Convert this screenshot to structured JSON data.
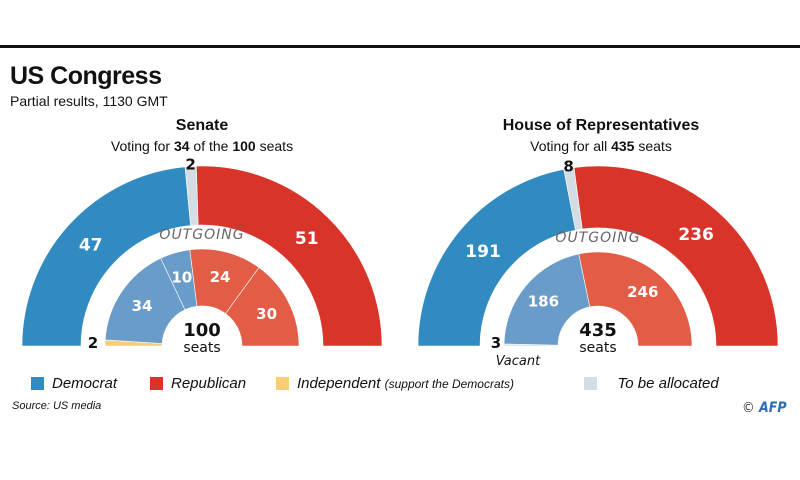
{
  "header": {
    "title": "US Congress",
    "subtitle": "Partial results, 1130 GMT"
  },
  "colors": {
    "democrat": "#318bc0",
    "republican": "#d9342a",
    "independent": "#f7cd78",
    "to_be_allocated": "#d4dde4",
    "democrat_outgoing": "#6a9cc9",
    "republican_outgoing": "#e25c46",
    "outgoing_label": "#666666"
  },
  "chart_data": [
    {
      "type": "semicircle-parliament",
      "title": "Senate",
      "subtitle_parts": [
        "Voting for ",
        "34",
        " of the ",
        "100",
        " seats"
      ],
      "total": 100,
      "total_label": "seats",
      "outer_ring": [
        {
          "party": "Democrat",
          "value": 47,
          "color": "democrat"
        },
        {
          "party": "To be allocated",
          "value": 2,
          "color": "to_be_allocated"
        },
        {
          "party": "Republican",
          "value": 51,
          "color": "republican"
        }
      ],
      "inner_label": "OUTGOING",
      "inner_ring": [
        {
          "party": "Independent",
          "value": 2,
          "color": "independent"
        },
        {
          "party": "Democrat",
          "value": 34,
          "color": "democrat_outgoing"
        },
        {
          "party": "Democrat",
          "value": 10,
          "color": "democrat_outgoing"
        },
        {
          "party": "Republican",
          "value": 24,
          "color": "republican_outgoing"
        },
        {
          "party": "Republican",
          "value": 30,
          "color": "republican_outgoing"
        }
      ]
    },
    {
      "type": "semicircle-parliament",
      "title": "House of Representatives",
      "subtitle_parts": [
        "Voting for all ",
        "435",
        " seats"
      ],
      "total": 435,
      "total_label": "seats",
      "outer_ring": [
        {
          "party": "Democrat",
          "value": 191,
          "color": "democrat"
        },
        {
          "party": "To be allocated",
          "value": 8,
          "color": "to_be_allocated"
        },
        {
          "party": "Republican",
          "value": 236,
          "color": "republican"
        }
      ],
      "inner_label": "OUTGOING",
      "inner_ring": [
        {
          "party": "Vacant",
          "value": 3,
          "color": "to_be_allocated",
          "note": "Vacant"
        },
        {
          "party": "Democrat",
          "value": 186,
          "color": "democrat_outgoing"
        },
        {
          "party": "Republican",
          "value": 246,
          "color": "republican_outgoing"
        }
      ]
    }
  ],
  "legend": {
    "democrat": "Democrat",
    "republican": "Republican",
    "independent": "Independent",
    "independent_note": "(support the Democrats)",
    "to_be_allocated": "To be allocated"
  },
  "footer": {
    "source": "Source: US media",
    "copyright": "©",
    "logo": "AFP"
  }
}
